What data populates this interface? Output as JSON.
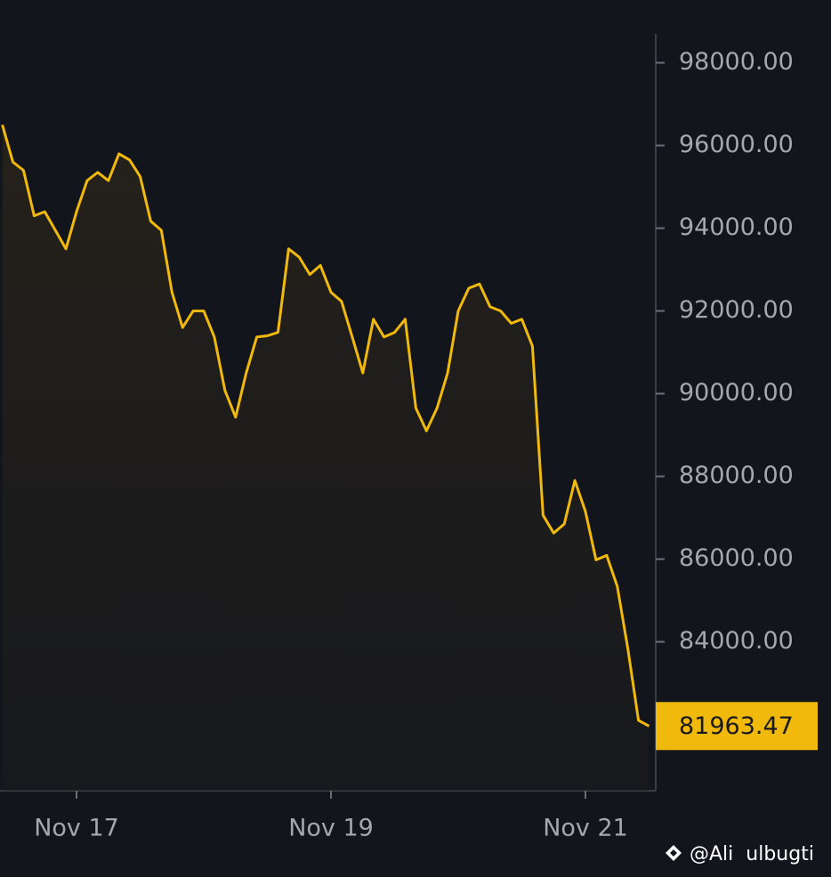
{
  "chart_data": {
    "type": "line",
    "categories": [
      null,
      null,
      null,
      null,
      null,
      null,
      null,
      "Nov 17",
      null,
      null,
      null,
      null,
      null,
      null,
      null,
      null,
      null,
      null,
      null,
      null,
      null,
      null,
      null,
      null,
      null,
      null,
      null,
      null,
      null,
      null,
      null,
      "Nov 19",
      null,
      null,
      null,
      null,
      null,
      null,
      null,
      null,
      null,
      null,
      null,
      null,
      null,
      null,
      null,
      null,
      null,
      null,
      null,
      null,
      null,
      null,
      null,
      "Nov 21",
      null,
      null,
      null,
      null,
      null,
      null
    ],
    "series": [
      {
        "color": "#f0b90b",
        "values": [
          96500,
          95600,
          95400,
          94300,
          94400,
          93950,
          93500,
          94400,
          95150,
          95350,
          95150,
          95800,
          95650,
          95250,
          94170,
          93950,
          92450,
          91600,
          92000,
          92000,
          91370,
          90080,
          89430,
          90500,
          91370,
          91400,
          91480,
          93500,
          93300,
          92880,
          93100,
          92450,
          92230,
          91370,
          90500,
          91800,
          91370,
          91480,
          91800,
          89650,
          89100,
          89650,
          90500,
          92000,
          92550,
          92650,
          92100,
          92000,
          91700,
          91800,
          91150,
          87060,
          86630,
          86850,
          87900,
          87150,
          85980,
          86090,
          85340,
          83830,
          82100,
          81963.47
        ]
      }
    ],
    "ylim": [
      80400,
      98700
    ],
    "yticks": [
      {
        "value": 84000,
        "label": "84000.00"
      },
      {
        "value": 86000,
        "label": "86000.00"
      },
      {
        "value": 88000,
        "label": "88000.00"
      },
      {
        "value": 90000,
        "label": "90000.00"
      },
      {
        "value": 92000,
        "label": "92000.00"
      },
      {
        "value": 94000,
        "label": "94000.00"
      },
      {
        "value": 96000,
        "label": "96000.00"
      },
      {
        "value": 98000,
        "label": "98000.00"
      }
    ],
    "last_price": 81963.47,
    "watermark": "@Ali  ulbugti"
  }
}
